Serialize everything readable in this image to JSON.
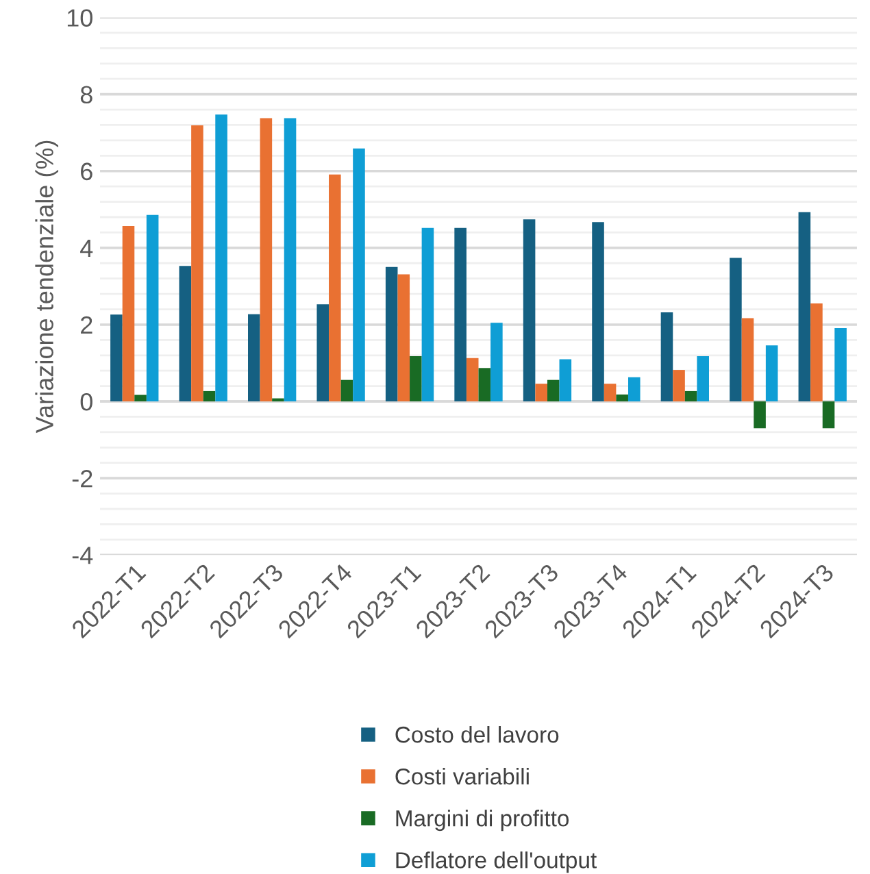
{
  "chart_data": {
    "type": "bar",
    "ylabel": "Variazione tendenziale (%)",
    "categories": [
      "2022-T1",
      "2022-T2",
      "2022-T3",
      "2022-T4",
      "2023-T1",
      "2023-T2",
      "2023-T3",
      "2023-T4",
      "2024-T1",
      "2024-T2",
      "2024-T3"
    ],
    "series": [
      {
        "name": "Costo del lavoro",
        "color": "#156082",
        "values": [
          2.26,
          3.53,
          2.27,
          2.53,
          3.5,
          4.52,
          4.74,
          4.67,
          2.32,
          3.74,
          4.93
        ]
      },
      {
        "name": "Costi variabili",
        "color": "#e97132",
        "values": [
          4.57,
          7.19,
          7.38,
          5.91,
          3.31,
          1.13,
          0.46,
          0.46,
          0.82,
          2.17,
          2.55
        ]
      },
      {
        "name": "Margini di profitto",
        "color": "#196b24",
        "values": [
          0.17,
          0.27,
          0.08,
          0.56,
          1.18,
          0.87,
          0.56,
          0.18,
          0.27,
          -0.7,
          -0.7
        ]
      },
      {
        "name": "Deflatore dell'output",
        "color": "#0f9ed5",
        "values": [
          4.86,
          7.47,
          7.38,
          6.59,
          4.52,
          2.05,
          1.1,
          0.63,
          1.18,
          1.46,
          1.91
        ]
      }
    ],
    "ylim": [
      -4,
      10
    ],
    "yticks": [
      -4,
      {
        "value": -3.6,
        "label": null
      },
      {
        "value": -3.2,
        "label": null
      },
      {
        "value": -2.8,
        "label": null
      },
      {
        "value": -2.4,
        "label": null
      },
      -2,
      {
        "value": -1.6,
        "label": null
      },
      {
        "value": -1.2,
        "label": null
      },
      {
        "value": -0.8,
        "label": null
      },
      {
        "value": -0.4,
        "label": null
      },
      0,
      {
        "value": 0.4,
        "label": null
      },
      {
        "value": 0.8,
        "label": null
      },
      {
        "value": 1.2,
        "label": null
      },
      {
        "value": 1.6,
        "label": null
      },
      2,
      {
        "value": 2.4,
        "label": null
      },
      {
        "value": 2.8,
        "label": null
      },
      {
        "value": 3.2,
        "label": null
      },
      {
        "value": 3.6,
        "label": null
      },
      4,
      {
        "value": 4.4,
        "label": null
      },
      {
        "value": 4.8,
        "label": null
      },
      {
        "value": 5.2,
        "label": null
      },
      {
        "value": 5.6,
        "label": null
      },
      6,
      {
        "value": 6.4,
        "label": null
      },
      {
        "value": 6.8,
        "label": null
      },
      {
        "value": 7.2,
        "label": null
      },
      {
        "value": 7.6,
        "label": null
      },
      8,
      {
        "value": 8.4,
        "label": null
      },
      {
        "value": 8.8,
        "label": null
      },
      {
        "value": 9.2,
        "label": null
      },
      {
        "value": 9.6,
        "label": null
      },
      10
    ],
    "grid": "y",
    "legend": "bottom"
  }
}
